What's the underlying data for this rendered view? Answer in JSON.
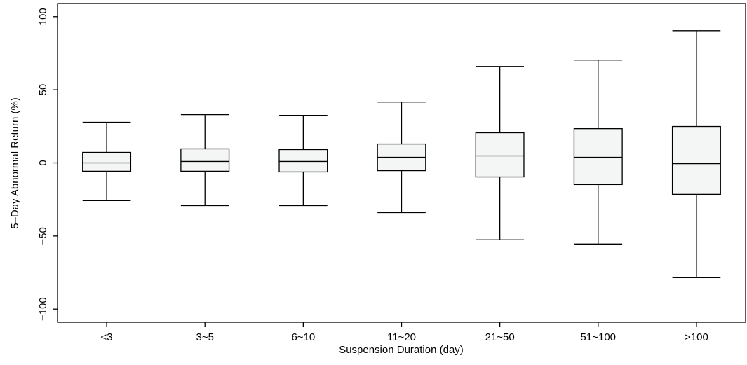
{
  "chart_data": {
    "type": "box",
    "x_label": "Suspension Duration (day)",
    "y_label": "5–Day Abnormal Return (%)",
    "categories": [
      "<3",
      "3~5",
      "6~10",
      "11~20",
      "21~50",
      "51~100",
      ">100"
    ],
    "whisker_high": [
      27.8,
      33,
      32.5,
      41.6,
      66,
      70.3,
      90.4
    ],
    "q3": [
      7.2,
      9.6,
      9.1,
      12.9,
      20.6,
      23.4,
      24.9
    ],
    "median": [
      0,
      1,
      1,
      3.8,
      4.8,
      3.8,
      -0.5
    ],
    "q1": [
      -5.7,
      -5.7,
      -6.2,
      -5.3,
      -9.6,
      -14.8,
      -21.5
    ],
    "whisker_low": [
      -25.8,
      -29.2,
      -29.2,
      -34,
      -52.6,
      -55.5,
      -78.5
    ],
    "color": "#f4f6f6",
    "ylim": [
      -109,
      109
    ],
    "yticks": [
      {
        "value": -100,
        "label": "−100"
      },
      {
        "value": -50,
        "label": "−50"
      },
      0,
      50,
      100
    ],
    "grid": false
  }
}
